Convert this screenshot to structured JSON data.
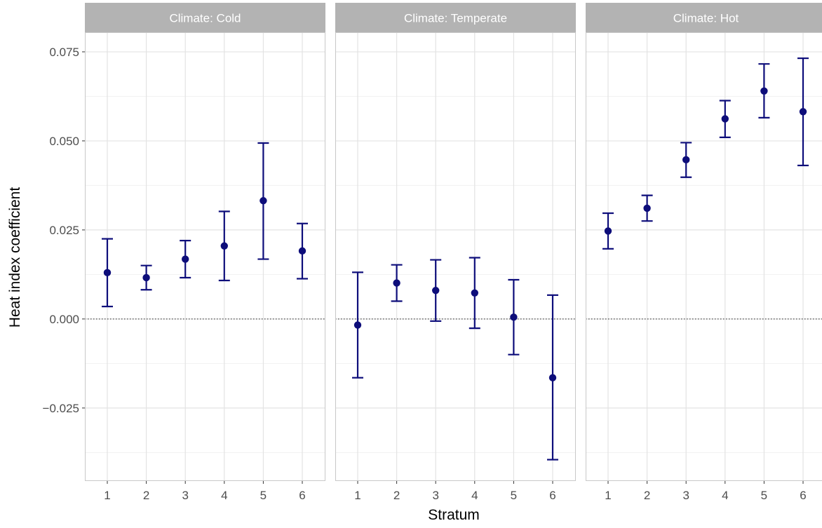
{
  "chart_data": {
    "type": "scatter",
    "subtype": "point-range (point estimate with error bars), faceted",
    "xlabel": "Stratum",
    "ylabel": "Heat index coefficient",
    "categories": [
      "1",
      "2",
      "3",
      "4",
      "5",
      "6"
    ],
    "ylim": [
      -0.0455,
      0.0805
    ],
    "yticks": [
      {
        "value": -0.025,
        "label": "−0.025"
      },
      {
        "value": 0.0,
        "label": "0.000"
      },
      {
        "value": 0.025,
        "label": "0.025"
      },
      {
        "value": 0.05,
        "label": "0.050"
      },
      {
        "value": 0.075,
        "label": "0.075"
      }
    ],
    "reference_line": {
      "y": 0,
      "style": "dotted"
    },
    "grid": true,
    "colors": {
      "point": "#0d0d7a",
      "strip_bg": "#b3b3b3",
      "strip_text": "#ffffff",
      "grid_major": "#e3e3e3",
      "grid_minor": "#f1f1f1",
      "panel_border": "#c8c8c8",
      "axis_text": "#4d4d4d",
      "title_text": "#000000"
    },
    "panels": [
      {
        "title": "Climate: Cold",
        "points": [
          {
            "x": "1",
            "y": 0.013,
            "ymin": 0.0035,
            "ymax": 0.0225
          },
          {
            "x": "2",
            "y": 0.0116,
            "ymin": 0.0082,
            "ymax": 0.015
          },
          {
            "x": "3",
            "y": 0.0168,
            "ymin": 0.0116,
            "ymax": 0.022
          },
          {
            "x": "4",
            "y": 0.0205,
            "ymin": 0.0108,
            "ymax": 0.0302
          },
          {
            "x": "5",
            "y": 0.0332,
            "ymin": 0.0168,
            "ymax": 0.0494
          },
          {
            "x": "6",
            "y": 0.0191,
            "ymin": 0.0113,
            "ymax": 0.0268
          }
        ]
      },
      {
        "title": "Climate: Temperate",
        "points": [
          {
            "x": "1",
            "y": -0.0017,
            "ymin": -0.0165,
            "ymax": 0.0131
          },
          {
            "x": "2",
            "y": 0.0101,
            "ymin": 0.005,
            "ymax": 0.0152
          },
          {
            "x": "3",
            "y": 0.008,
            "ymin": -0.0006,
            "ymax": 0.0166
          },
          {
            "x": "4",
            "y": 0.0073,
            "ymin": -0.0026,
            "ymax": 0.0172
          },
          {
            "x": "5",
            "y": 0.0005,
            "ymin": -0.01,
            "ymax": 0.011
          },
          {
            "x": "6",
            "y": -0.0165,
            "ymin": -0.0395,
            "ymax": 0.0067
          }
        ]
      },
      {
        "title": "Climate: Hot",
        "points": [
          {
            "x": "1",
            "y": 0.0247,
            "ymin": 0.0197,
            "ymax": 0.0297
          },
          {
            "x": "2",
            "y": 0.0311,
            "ymin": 0.0275,
            "ymax": 0.0347
          },
          {
            "x": "3",
            "y": 0.0447,
            "ymin": 0.0398,
            "ymax": 0.0495
          },
          {
            "x": "4",
            "y": 0.0562,
            "ymin": 0.051,
            "ymax": 0.0613
          },
          {
            "x": "5",
            "y": 0.064,
            "ymin": 0.0565,
            "ymax": 0.0716
          },
          {
            "x": "6",
            "y": 0.0582,
            "ymin": 0.0431,
            "ymax": 0.0732
          }
        ]
      }
    ]
  }
}
